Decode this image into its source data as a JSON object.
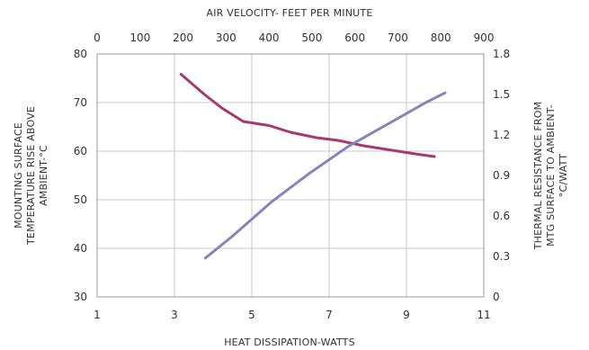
{
  "chart_data": {
    "type": "line",
    "top_axis": {
      "label": "AIR VELOCITY- FEET PER MINUTE",
      "range": [
        0,
        900
      ],
      "ticks": [
        "0",
        "100",
        "200",
        "300",
        "400",
        "500",
        "600",
        "700",
        "800",
        "900"
      ]
    },
    "bottom_axis": {
      "label": "HEAT DISSIPATION-WATTS",
      "range": [
        1,
        11
      ],
      "ticks": [
        "1",
        "3",
        "5",
        "7",
        "9",
        "11"
      ]
    },
    "left_axis": {
      "label_lines": [
        "MOUNTING SURFACE",
        "TEMPERATURE RISE ABOVE",
        "AMBIENT-°C"
      ],
      "range": [
        30,
        80
      ],
      "ticks": [
        "30",
        "40",
        "50",
        "60",
        "70",
        "80"
      ]
    },
    "right_axis": {
      "label_lines": [
        "THERMAL RESISTANCE FROM",
        "MTG SURFACE TO AMBIENT-",
        "°C/WATT"
      ],
      "range": [
        0,
        1.8
      ],
      "ticks": [
        "0",
        "0.3",
        "0.6",
        "0.9",
        "1.2",
        "1.5",
        "1.8"
      ]
    },
    "grid": true,
    "series": [
      {
        "color": "#a53a6e",
        "x_axis": "top",
        "y_axis": "right",
        "x": [
          195,
          250,
          290,
          340,
          400,
          450,
          510,
          560,
          620,
          680,
          740,
          785
        ],
        "y": [
          1.65,
          1.5,
          1.4,
          1.3,
          1.27,
          1.22,
          1.18,
          1.16,
          1.12,
          1.09,
          1.06,
          1.04
        ]
      },
      {
        "color": "#8585bb",
        "x_axis": "bottom",
        "y_axis": "left",
        "x": [
          3.8,
          4.5,
          5.5,
          6.5,
          7.5,
          8.5,
          9.5,
          10.0
        ],
        "y": [
          38.0,
          42.5,
          49.5,
          55.5,
          61.0,
          65.5,
          70.0,
          72.0
        ]
      }
    ]
  }
}
